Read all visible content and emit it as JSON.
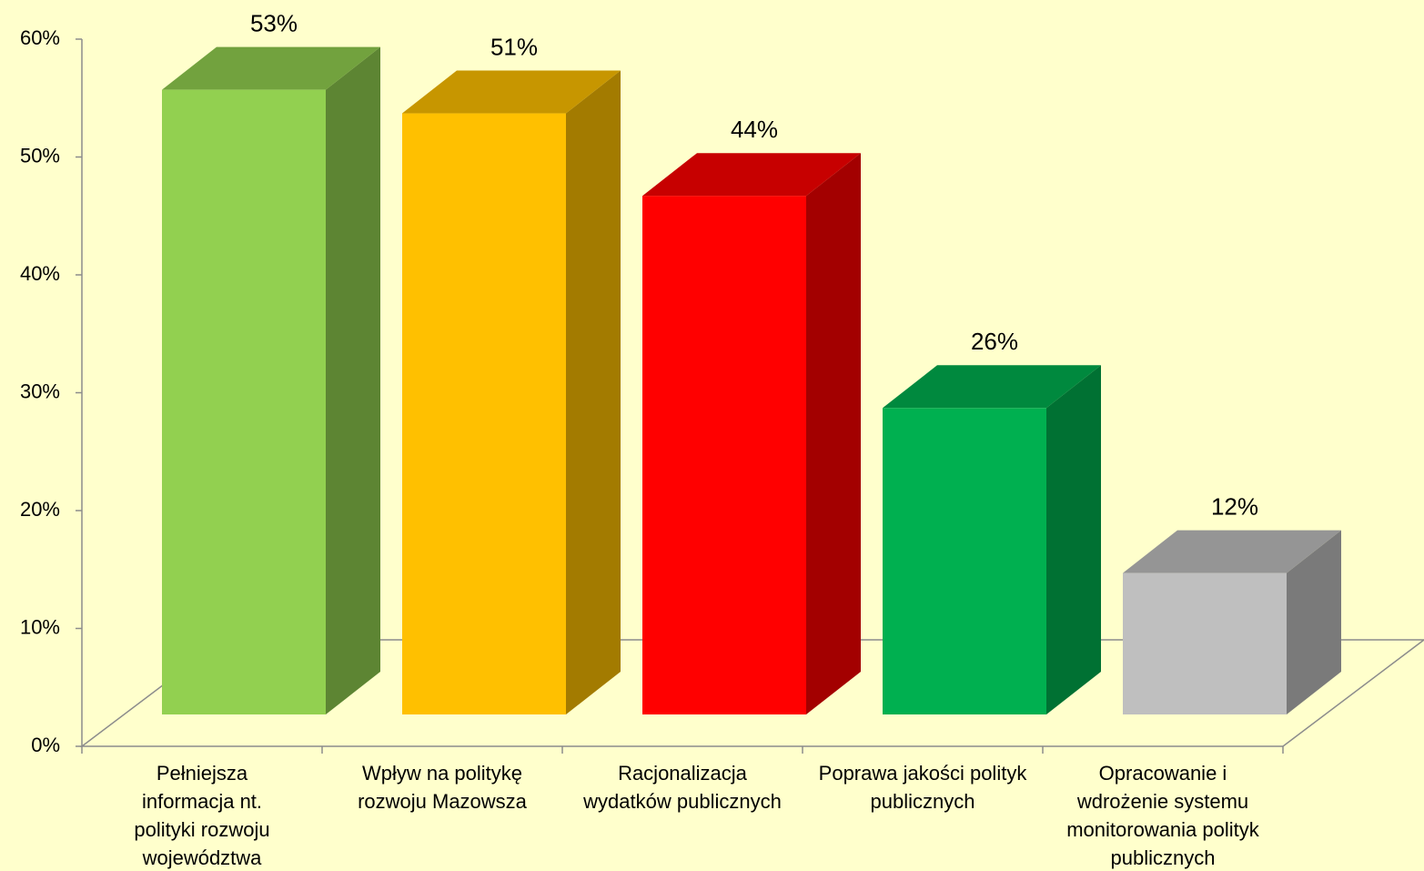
{
  "chart_data": {
    "type": "bar3d",
    "categories": [
      "Pełniejsza informacja nt. polityki rozwoju województwa",
      "Wpływ na politykę rozwoju Mazowsza",
      "Racjonalizacja wydatków publicznych",
      "Poprawa jakości polityk publicznych",
      "Opracowanie i wdrożenie systemu monitorowania polityk publicznych"
    ],
    "values": [
      53,
      51,
      44,
      26,
      12
    ],
    "value_labels": [
      "53%",
      "51%",
      "44%",
      "26%",
      "12%"
    ],
    "colors": [
      "#92d050",
      "#ffc000",
      "#ff0000",
      "#00b050",
      "#bfbfbf"
    ],
    "ylim": [
      0,
      60
    ],
    "yticks": [
      {
        "value": 0,
        "label": "0%"
      },
      {
        "value": 10,
        "label": "10%"
      },
      {
        "value": 20,
        "label": "20%"
      },
      {
        "value": 30,
        "label": "30%"
      },
      {
        "value": 40,
        "label": "40%"
      },
      {
        "value": 50,
        "label": "50%"
      },
      {
        "value": 60,
        "label": "60%"
      }
    ]
  }
}
